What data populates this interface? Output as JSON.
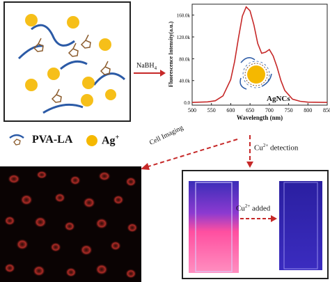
{
  "colors": {
    "polymer": "#2b5aa6",
    "ligand": "#8a5a2b",
    "silver": "#f5b800",
    "arrow": "#c62828",
    "curve": "#c62828"
  },
  "synthesis": {
    "arrow_label": "NaBH",
    "arrow_label_sub": "4"
  },
  "legend": {
    "polymer_label": "PVA-LA",
    "silver_label": "Ag",
    "silver_sup": "+"
  },
  "chart_data": {
    "type": "line",
    "xlabel": "Wavelength (nm)",
    "ylabel": "Fluorescence Intensity(a.u.)",
    "xlim": [
      500,
      850
    ],
    "ylim": [
      -5000,
      180000
    ],
    "xticks": [
      "500",
      "550",
      "600",
      "650",
      "700",
      "750",
      "800",
      "850"
    ],
    "yticks": [
      "0.0",
      "40.0k",
      "80.0k",
      "120.0k",
      "160.0k"
    ],
    "annotation": "AgNCs",
    "series": [
      {
        "x": [
          500,
          540,
          560,
          580,
          600,
          610,
          620,
          630,
          640,
          650,
          660,
          670,
          680,
          690,
          700,
          710,
          720,
          730,
          740,
          760,
          780,
          800,
          850
        ],
        "values": [
          0,
          1000,
          3000,
          12000,
          42000,
          75000,
          118000,
          158000,
          175000,
          168000,
          142000,
          108000,
          90000,
          92000,
          97000,
          85000,
          65000,
          40000,
          22000,
          6000,
          2000,
          500,
          0
        ]
      }
    ]
  },
  "flow": {
    "cell_imaging_label": "Cell Imaging",
    "detection_label": "Cu",
    "detection_sup": "2+",
    "detection_suffix": " detection",
    "added_label": "Cu",
    "added_sup": "2+",
    "added_suffix": " added"
  }
}
